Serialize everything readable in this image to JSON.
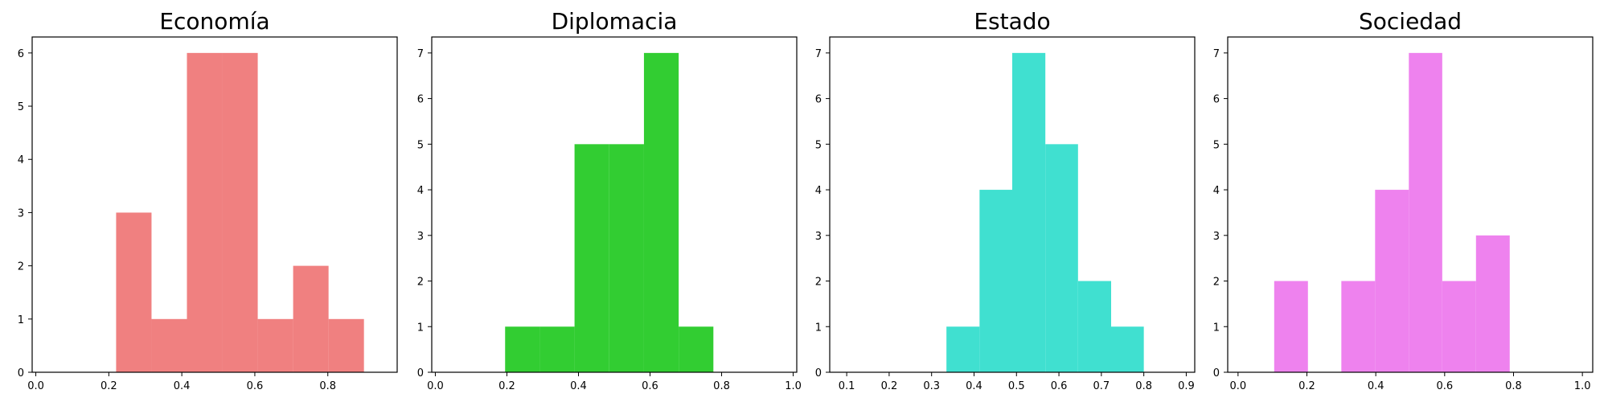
{
  "chart_data": [
    {
      "type": "bar",
      "title": "Economía",
      "color": "#F08080",
      "xlim": [
        -0.01,
        0.99
      ],
      "ylim": [
        0,
        6.3
      ],
      "xticks": [
        "0.0",
        "0.2",
        "0.4",
        "0.6",
        "0.8"
      ],
      "yticks": [
        "0",
        "1",
        "2",
        "3",
        "4",
        "5",
        "6"
      ],
      "bins": [
        {
          "start": 0.22,
          "end": 0.317,
          "count": 3
        },
        {
          "start": 0.317,
          "end": 0.414,
          "count": 1
        },
        {
          "start": 0.414,
          "end": 0.511,
          "count": 6
        },
        {
          "start": 0.511,
          "end": 0.608,
          "count": 6
        },
        {
          "start": 0.608,
          "end": 0.705,
          "count": 1
        },
        {
          "start": 0.705,
          "end": 0.802,
          "count": 2
        },
        {
          "start": 0.802,
          "end": 0.899,
          "count": 1
        }
      ]
    },
    {
      "type": "bar",
      "title": "Diplomacia",
      "color": "#32CD32",
      "xlim": [
        -0.01,
        1.01
      ],
      "ylim": [
        0,
        7.35
      ],
      "xticks": [
        "0.0",
        "0.2",
        "0.4",
        "0.6",
        "0.8",
        "1.0"
      ],
      "yticks": [
        "0",
        "1",
        "2",
        "3",
        "4",
        "5",
        "6",
        "7"
      ],
      "bins": [
        {
          "start": 0.195,
          "end": 0.292,
          "count": 1
        },
        {
          "start": 0.292,
          "end": 0.389,
          "count": 1
        },
        {
          "start": 0.389,
          "end": 0.486,
          "count": 5
        },
        {
          "start": 0.486,
          "end": 0.583,
          "count": 5
        },
        {
          "start": 0.583,
          "end": 0.68,
          "count": 7
        },
        {
          "start": 0.68,
          "end": 0.777,
          "count": 1
        }
      ]
    },
    {
      "type": "bar",
      "title": "Estado",
      "color": "#40E0D0",
      "xlim": [
        0.06,
        0.92
      ],
      "ylim": [
        0,
        7.35
      ],
      "xticks": [
        "0.1",
        "0.2",
        "0.3",
        "0.4",
        "0.5",
        "0.6",
        "0.7",
        "0.8",
        "0.9"
      ],
      "yticks": [
        "0",
        "1",
        "2",
        "3",
        "4",
        "5",
        "6",
        "7"
      ],
      "bins": [
        {
          "start": 0.335,
          "end": 0.413,
          "count": 1
        },
        {
          "start": 0.413,
          "end": 0.49,
          "count": 4
        },
        {
          "start": 0.49,
          "end": 0.568,
          "count": 7
        },
        {
          "start": 0.568,
          "end": 0.645,
          "count": 5
        },
        {
          "start": 0.645,
          "end": 0.723,
          "count": 2
        },
        {
          "start": 0.723,
          "end": 0.8,
          "count": 1
        }
      ]
    },
    {
      "type": "bar",
      "title": "Sociedad",
      "color": "#EE82EE",
      "xlim": [
        -0.03,
        1.03
      ],
      "ylim": [
        0,
        7.35
      ],
      "xticks": [
        "0.0",
        "0.2",
        "0.4",
        "0.6",
        "0.8",
        "1.0"
      ],
      "yticks": [
        "0",
        "1",
        "2",
        "3",
        "4",
        "5",
        "6",
        "7"
      ],
      "bins": [
        {
          "start": 0.105,
          "end": 0.203,
          "count": 2
        },
        {
          "start": 0.203,
          "end": 0.3,
          "count": 0
        },
        {
          "start": 0.3,
          "end": 0.398,
          "count": 2
        },
        {
          "start": 0.398,
          "end": 0.496,
          "count": 4
        },
        {
          "start": 0.496,
          "end": 0.593,
          "count": 7
        },
        {
          "start": 0.593,
          "end": 0.691,
          "count": 2
        },
        {
          "start": 0.691,
          "end": 0.789,
          "count": 3
        }
      ]
    }
  ]
}
